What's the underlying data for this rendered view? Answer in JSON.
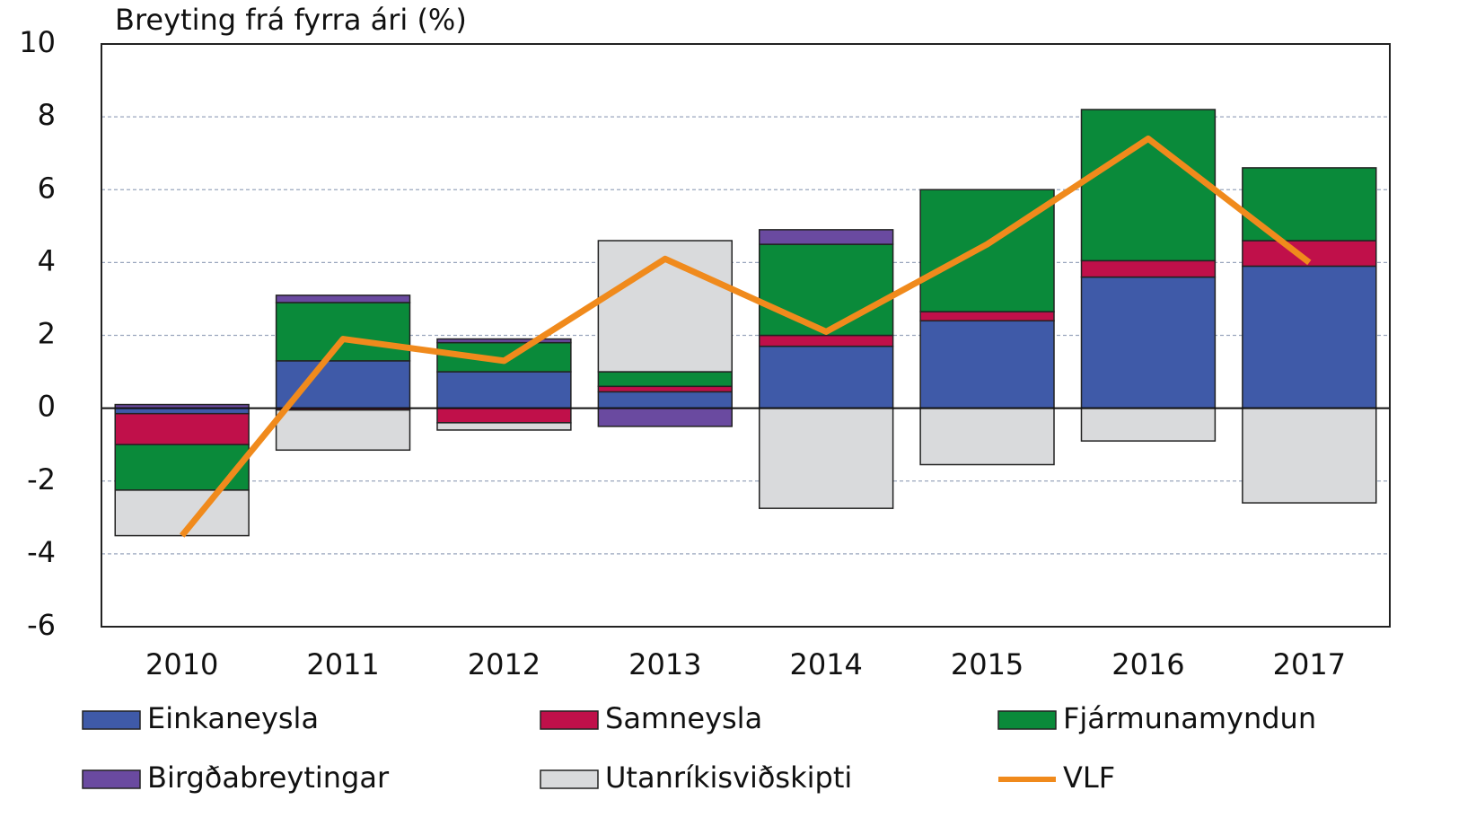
{
  "chart_data": {
    "type": "bar",
    "stacked": true,
    "title": "Breyting frá fyrra ári (%)",
    "categories": [
      "2010",
      "2011",
      "2012",
      "2013",
      "2014",
      "2015",
      "2016",
      "2017"
    ],
    "series": [
      {
        "name": "Einkaneysla",
        "color": "#3f5aa8",
        "values": [
          -0.15,
          1.3,
          1.0,
          0.45,
          1.7,
          2.4,
          3.6,
          3.9
        ]
      },
      {
        "name": "Samneysla",
        "color": "#c0104a",
        "values": [
          -0.85,
          -0.05,
          -0.4,
          0.15,
          0.3,
          0.25,
          0.45,
          0.7
        ]
      },
      {
        "name": "Fjármunamyndun",
        "color": "#0a8a3a",
        "values": [
          -1.25,
          1.6,
          0.8,
          0.4,
          2.5,
          3.35,
          4.15,
          2.0
        ]
      },
      {
        "name": "Birgðabreytingar",
        "color": "#6a4aa0",
        "values": [
          0.1,
          0.2,
          0.1,
          -0.5,
          0.4,
          0,
          0,
          0
        ]
      },
      {
        "name": "Utanríkisviðskipti",
        "color": "#d9dadc",
        "values": [
          -1.25,
          -1.1,
          -0.2,
          3.6,
          -2.75,
          -1.55,
          -0.9,
          -2.6
        ]
      },
      {
        "name": "VLF",
        "color": "#f08a1c",
        "type": "line",
        "values": [
          -3.5,
          1.9,
          1.3,
          4.1,
          2.1,
          4.5,
          7.4,
          4.0
        ]
      }
    ],
    "ylim": [
      -6,
      10
    ],
    "yticks": [
      -6,
      -4,
      -2,
      0,
      2,
      4,
      6,
      8,
      10
    ],
    "grid": true
  }
}
